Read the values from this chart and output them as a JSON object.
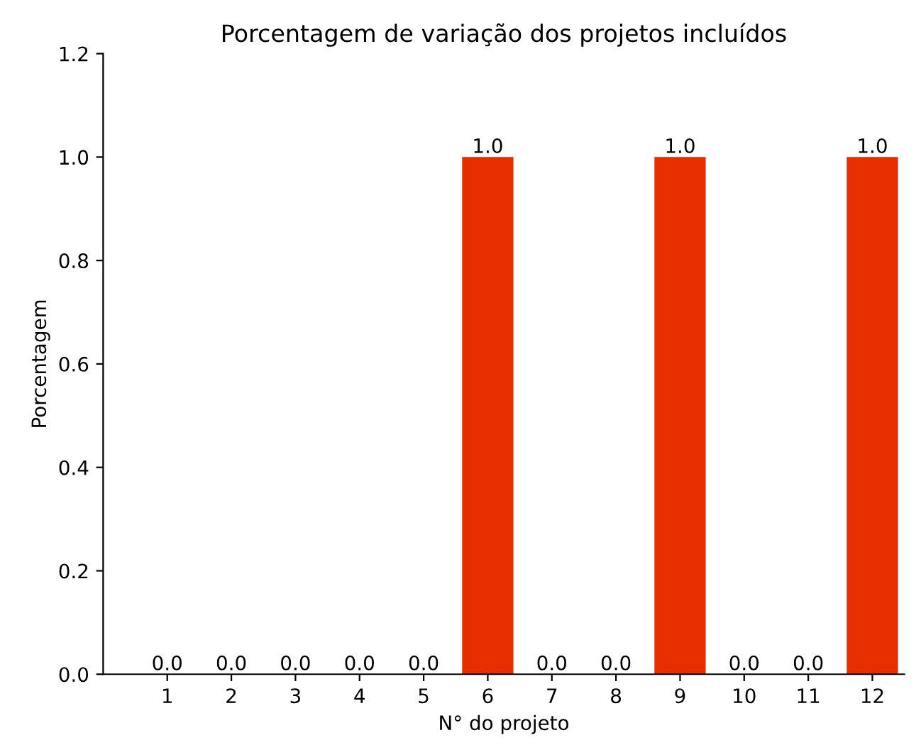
{
  "chart_data": {
    "type": "bar",
    "title": "Porcentagem de variação dos projetos incluídos",
    "xlabel": "N° do projeto",
    "ylabel": "Porcentagem",
    "categories": [
      "1",
      "2",
      "3",
      "4",
      "5",
      "6",
      "7",
      "8",
      "9",
      "10",
      "11",
      "12"
    ],
    "values": [
      0,
      0,
      0,
      0,
      0,
      1,
      0,
      0,
      1,
      0,
      0,
      1
    ],
    "value_labels": [
      "0.0",
      "0.0",
      "0.0",
      "0.0",
      "0.0",
      "1.0",
      "0.0",
      "0.0",
      "1.0",
      "0.0",
      "0.0",
      "1.0"
    ],
    "color": "#e62e00",
    "ylim": [
      0,
      1.2
    ],
    "yticks": [
      {
        "value": 0,
        "label": "0.0"
      },
      {
        "value": 0.2,
        "label": "0.2"
      },
      {
        "value": 0.4,
        "label": "0.4"
      },
      {
        "value": 0.6,
        "label": "0.6"
      },
      {
        "value": 0.8,
        "label": "0.8"
      },
      {
        "value": 1,
        "label": "1.0"
      },
      {
        "value": 1.2,
        "label": "1.2"
      }
    ],
    "grid": false
  }
}
